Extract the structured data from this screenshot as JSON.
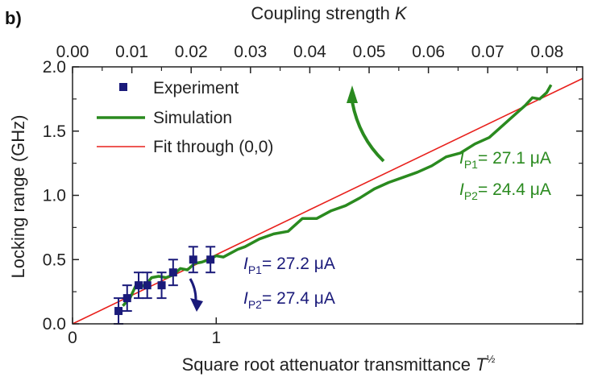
{
  "panel_label": "b)",
  "chart_data": {
    "type": "line",
    "title": "",
    "xlabel": "Square root attenuator transmittance",
    "xlabel_symbol": "T",
    "xlabel_superscript": "½",
    "x2label": "Coupling strength",
    "x2label_symbol": "K",
    "ylabel": "Locking range (GHz)",
    "xlim": [
      0,
      3.55
    ],
    "ylim": [
      0.0,
      2.0
    ],
    "x2lim": [
      0.0,
      0.086
    ],
    "x_ticks": [
      0,
      1
    ],
    "x_tick_labels": [
      "0",
      "1"
    ],
    "y_ticks": [
      0.0,
      0.5,
      1.0,
      1.5,
      2.0
    ],
    "y_tick_labels": [
      "0.0",
      "0.5",
      "1.0",
      "1.5",
      "2.0"
    ],
    "x2_ticks": [
      0.0,
      0.01,
      0.02,
      0.03,
      0.04,
      0.05,
      0.06,
      0.07,
      0.08
    ],
    "x2_tick_labels": [
      "0.00",
      "0.01",
      "0.02",
      "0.03",
      "0.04",
      "0.05",
      "0.06",
      "0.07",
      "0.08"
    ],
    "grid": false,
    "legend_position": "top-left",
    "series": [
      {
        "name": "Experiment",
        "type": "scatter",
        "color": "#1a1a7a",
        "x": [
          0.32,
          0.38,
          0.46,
          0.52,
          0.62,
          0.7,
          0.84,
          0.96
        ],
        "y": [
          0.1,
          0.2,
          0.3,
          0.3,
          0.3,
          0.4,
          0.5,
          0.5
        ],
        "yerr": [
          0.1,
          0.1,
          0.1,
          0.1,
          0.1,
          0.1,
          0.1,
          0.1
        ]
      },
      {
        "name": "Simulation",
        "type": "line",
        "color": "#2a8a1f",
        "x": [
          0.35,
          0.4,
          0.45,
          0.5,
          0.55,
          0.6,
          0.65,
          0.7,
          0.75,
          0.8,
          0.85,
          0.9,
          0.95,
          1.0,
          1.05,
          1.1,
          1.15,
          1.2,
          1.3,
          1.4,
          1.5,
          1.6,
          1.7,
          1.8,
          1.9,
          2.0,
          2.1,
          2.2,
          2.3,
          2.4,
          2.5,
          2.6,
          2.7,
          2.8,
          2.9,
          3.0,
          3.05,
          3.1,
          3.15,
          3.2,
          3.25,
          3.3,
          3.33
        ],
        "y": [
          0.14,
          0.2,
          0.32,
          0.29,
          0.36,
          0.37,
          0.36,
          0.38,
          0.43,
          0.42,
          0.47,
          0.48,
          0.5,
          0.53,
          0.52,
          0.55,
          0.58,
          0.6,
          0.66,
          0.7,
          0.72,
          0.82,
          0.82,
          0.88,
          0.92,
          0.98,
          1.05,
          1.1,
          1.14,
          1.18,
          1.23,
          1.3,
          1.33,
          1.4,
          1.45,
          1.55,
          1.6,
          1.65,
          1.7,
          1.76,
          1.75,
          1.8,
          1.86
        ]
      },
      {
        "name": "Fit through (0,0)",
        "type": "line",
        "color": "#e8201c",
        "x": [
          0,
          3.55
        ],
        "y": [
          0,
          1.91
        ]
      }
    ],
    "annotations": [
      {
        "id": "green",
        "color": "#2a8a1f",
        "line1_var": "I",
        "line1_sub": "P1",
        "line1_text": "= 27.1 μA",
        "line2_var": "I",
        "line2_sub": "P2",
        "line2_text": "= 24.4 μA"
      },
      {
        "id": "blue",
        "color": "#1a1a7a",
        "line1_var": "I",
        "line1_sub": "P1",
        "line1_text": "= 27.2 μA",
        "line2_var": "I",
        "line2_sub": "P2",
        "line2_text": "= 27.4 μA"
      }
    ]
  }
}
